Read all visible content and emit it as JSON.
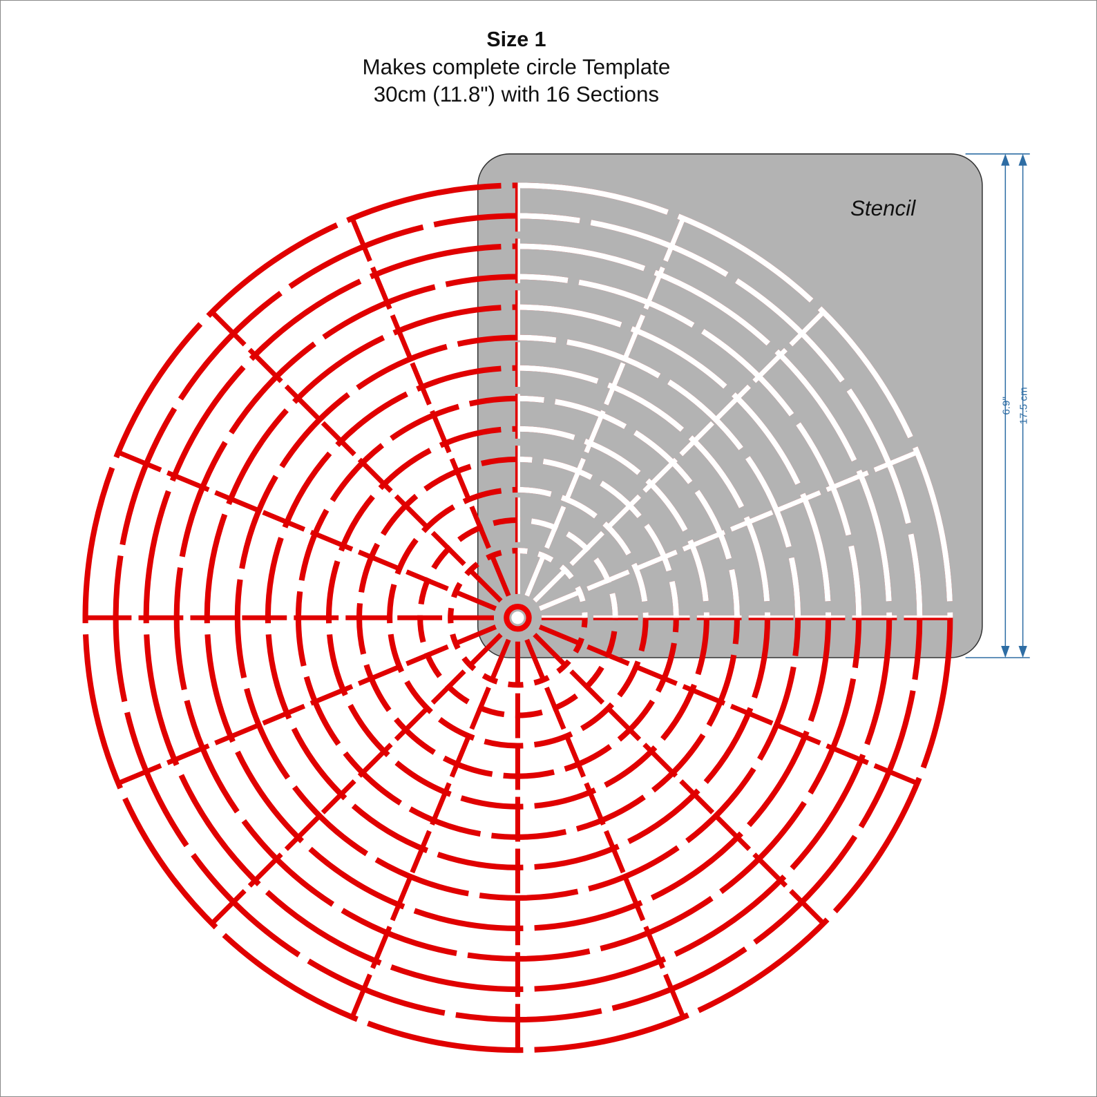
{
  "header": {
    "title": "Size 1",
    "line1": "Makes complete circle Template",
    "line2": "30cm (11.8\") with 16 Sections"
  },
  "stencil": {
    "label": "Stencil"
  },
  "dimensions": {
    "inches": "6.9\"",
    "cm": "17.5 cm"
  }
}
